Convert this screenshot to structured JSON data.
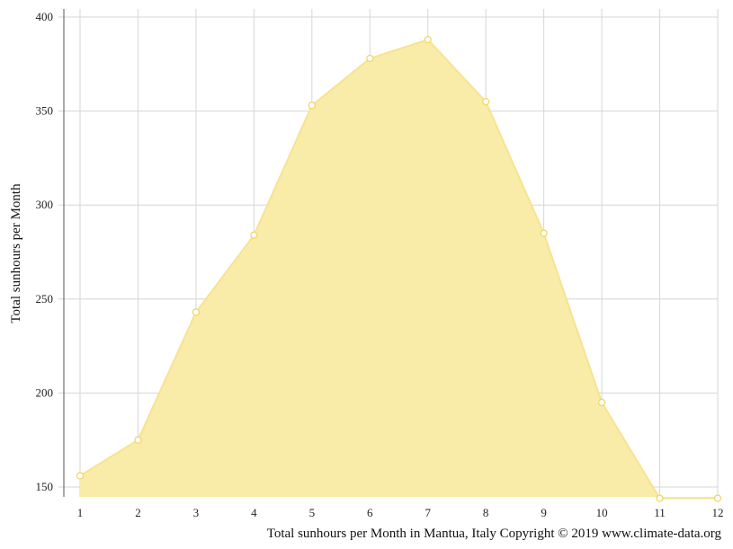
{
  "chart_data": {
    "type": "area",
    "x": [
      1,
      2,
      3,
      4,
      5,
      6,
      7,
      8,
      9,
      10,
      11,
      12
    ],
    "series": [
      {
        "values": [
          156,
          175,
          243,
          284,
          353,
          378,
          388,
          355,
          285,
          195,
          144,
          144
        ]
      }
    ],
    "ylabel": "Total sunhours per Month",
    "xlabel": "",
    "caption": "Total sunhours per Month in Mantua, Italy Copyright © 2019 www.climate-data.org",
    "xlim": [
      1,
      12
    ],
    "ylim": [
      145,
      405
    ],
    "y_ticks": [
      150,
      200,
      250,
      300,
      350,
      400
    ],
    "grid": true,
    "colors": {
      "fill": "#f9eca8",
      "line": "#f7e38f",
      "marker_fill": "#ffffff",
      "marker_stroke": "#f2d66a",
      "grid": "#d6d6d6",
      "axis": "#555555"
    }
  }
}
